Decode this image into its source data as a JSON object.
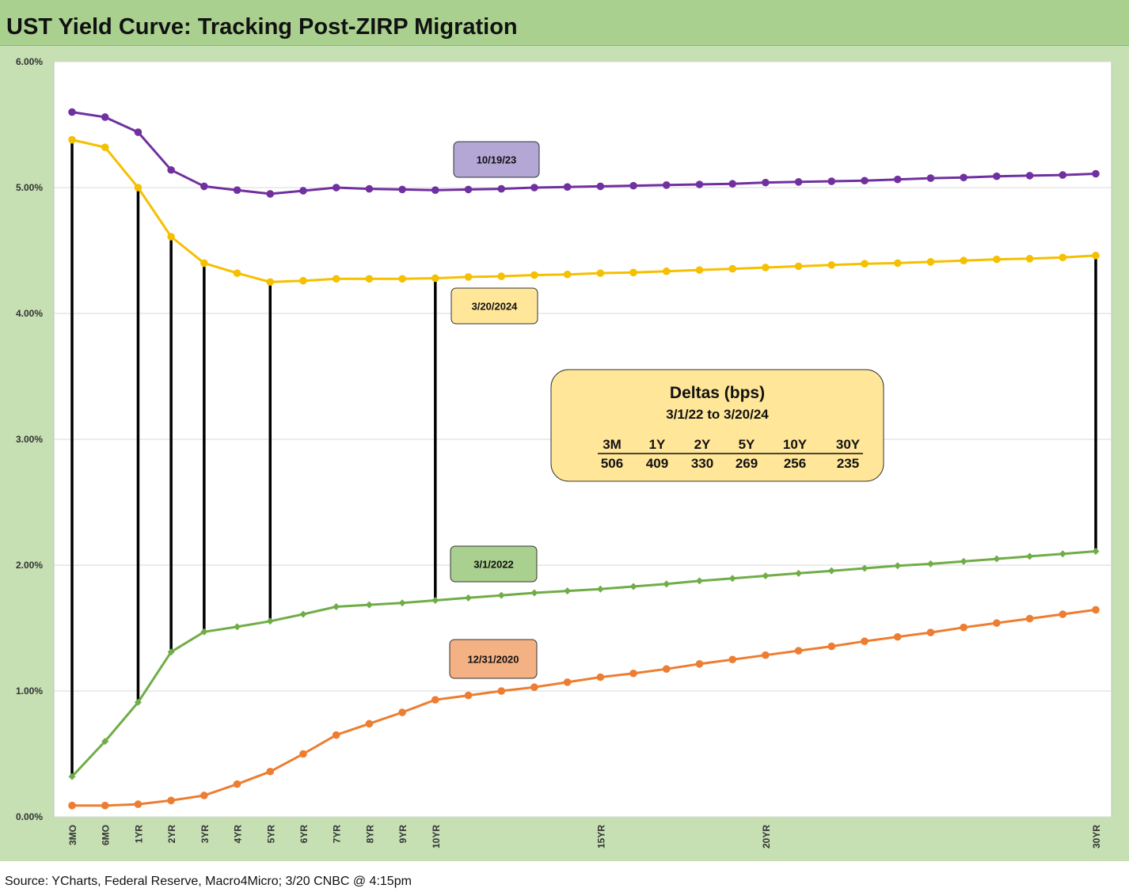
{
  "title": "UST Yield Curve: Tracking Post-ZIRP Migration",
  "source": "Source: YCharts, Federal Reserve, Macro4Micro; 3/20 CNBC @ 4:15pm",
  "chart_data": {
    "type": "line",
    "ylim": [
      0,
      6
    ],
    "y_ticks": [
      "0.00%",
      "1.00%",
      "2.00%",
      "3.00%",
      "4.00%",
      "5.00%",
      "6.00%"
    ],
    "x_tick_labels": [
      {
        "i": 0,
        "label": "3MO"
      },
      {
        "i": 1,
        "label": "6MO"
      },
      {
        "i": 2,
        "label": "1YR"
      },
      {
        "i": 3,
        "label": "2YR"
      },
      {
        "i": 4,
        "label": "3YR"
      },
      {
        "i": 5,
        "label": "4YR"
      },
      {
        "i": 6,
        "label": "5YR"
      },
      {
        "i": 7,
        "label": "6YR"
      },
      {
        "i": 8,
        "label": "7YR"
      },
      {
        "i": 9,
        "label": "8YR"
      },
      {
        "i": 10,
        "label": "9YR"
      },
      {
        "i": 11,
        "label": "10YR"
      },
      {
        "i": 16,
        "label": "15YR"
      },
      {
        "i": 21,
        "label": "20YR"
      },
      {
        "i": 31,
        "label": "30YR"
      }
    ],
    "grid": true,
    "series": [
      {
        "name": "10/19/23",
        "color": "#7030a0",
        "label_fill": "#b4a7d6",
        "values": [
          5.6,
          5.56,
          5.44,
          5.14,
          5.01,
          4.98,
          4.95,
          4.975,
          5.0,
          4.99,
          4.985,
          4.98,
          4.985,
          4.99,
          5.0,
          5.005,
          5.01,
          5.015,
          5.02,
          5.025,
          5.03,
          5.04,
          5.045,
          5.05,
          5.055,
          5.065,
          5.075,
          5.08,
          5.09,
          5.095,
          5.1,
          5.11
        ]
      },
      {
        "name": "3/20/2024",
        "color": "#f5c000",
        "label_fill": "#ffe699",
        "values": [
          5.38,
          5.32,
          5.0,
          4.61,
          4.4,
          4.32,
          4.25,
          4.26,
          4.275,
          4.275,
          4.275,
          4.28,
          4.29,
          4.295,
          4.305,
          4.31,
          4.32,
          4.325,
          4.335,
          4.345,
          4.355,
          4.365,
          4.375,
          4.385,
          4.395,
          4.4,
          4.41,
          4.42,
          4.43,
          4.435,
          4.445,
          4.46
        ]
      },
      {
        "name": "3/1/2022",
        "color": "#70ad47",
        "label_fill": "#a9d08e",
        "values": [
          0.32,
          0.6,
          0.91,
          1.31,
          1.47,
          1.51,
          1.555,
          1.61,
          1.67,
          1.685,
          1.7,
          1.72,
          1.74,
          1.76,
          1.78,
          1.795,
          1.81,
          1.83,
          1.85,
          1.875,
          1.895,
          1.915,
          1.935,
          1.955,
          1.975,
          1.995,
          2.01,
          2.03,
          2.05,
          2.07,
          2.09,
          2.11
        ]
      },
      {
        "name": "12/31/2020",
        "color": "#ed7d31",
        "label_fill": "#f4b183",
        "values": [
          0.09,
          0.09,
          0.1,
          0.13,
          0.17,
          0.26,
          0.36,
          0.5,
          0.65,
          0.74,
          0.83,
          0.93,
          0.965,
          1.0,
          1.03,
          1.07,
          1.11,
          1.14,
          1.175,
          1.215,
          1.25,
          1.285,
          1.32,
          1.355,
          1.395,
          1.43,
          1.465,
          1.505,
          1.54,
          1.575,
          1.61,
          1.645
        ]
      }
    ],
    "delta_lines": {
      "color": "#000000",
      "from_series": "3/20/2024",
      "to_series": "3/1/2022",
      "indices": [
        0,
        2,
        3,
        4,
        6,
        11,
        31
      ]
    },
    "deltas_box": {
      "title": "Deltas (bps)",
      "subtitle": "3/1/22 to 3/20/24",
      "headers": [
        "3M",
        "1Y",
        "2Y",
        "5Y",
        "10Y",
        "30Y"
      ],
      "values": [
        "506",
        "409",
        "330",
        "269",
        "256",
        "235"
      ],
      "fill": "#ffe699"
    }
  }
}
